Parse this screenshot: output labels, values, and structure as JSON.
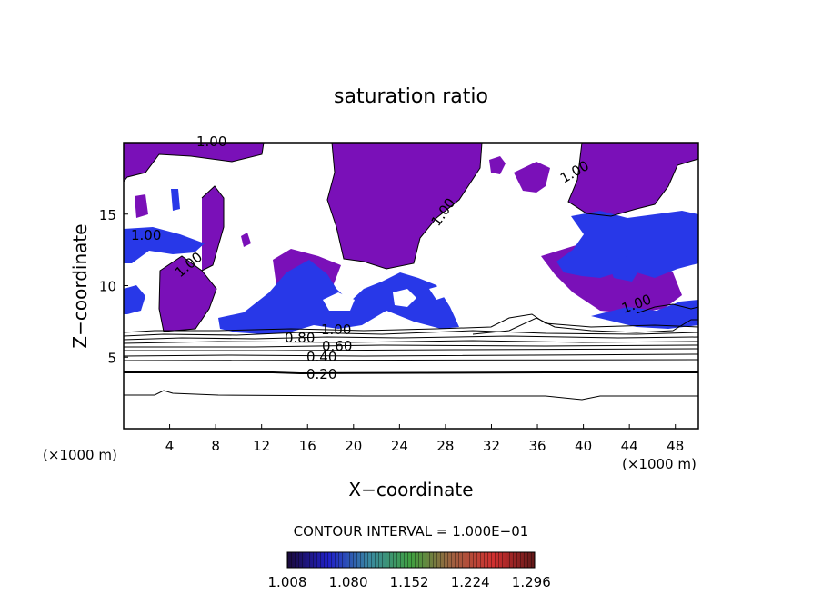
{
  "chart_data": {
    "type": "heatmap",
    "title": "saturation ratio",
    "xlabel": "X−coordinate",
    "ylabel": "Z−coordinate",
    "x_unit": "(×1000 m)",
    "y_unit": "(×1000 m)",
    "xlim": [
      0,
      50
    ],
    "ylim": [
      0,
      20
    ],
    "x_ticks": [
      4,
      8,
      12,
      16,
      20,
      24,
      28,
      32,
      36,
      40,
      44,
      48
    ],
    "y_ticks": [
      5,
      10,
      15
    ],
    "grid": false,
    "contour_interval_label": "CONTOUR INTERVAL = 1.000E−01",
    "contours": [
      {
        "level": 0.2,
        "label": "0.20",
        "z": 4.0
      },
      {
        "level": 0.4,
        "label": "0.40",
        "z": 5.0
      },
      {
        "level": 0.6,
        "label": "0.60",
        "z": 5.6
      },
      {
        "level": 0.8,
        "label": "0.80",
        "z": 6.4
      },
      {
        "level": 1.0,
        "label": "1.00",
        "z": 7.0
      }
    ],
    "colorbar": {
      "tick_labels": [
        "1.008",
        "1.080",
        "1.152",
        "1.224",
        "1.296"
      ],
      "range": [
        1.008,
        1.3
      ],
      "colors": [
        "#1a0a3a",
        "#2020c8",
        "#3a8aa0",
        "#40a040",
        "#a06040",
        "#d03030",
        "#601818"
      ]
    },
    "fill_colors": {
      "saturated": "#7a10b8",
      "supersaturated": "#2838e8"
    }
  }
}
